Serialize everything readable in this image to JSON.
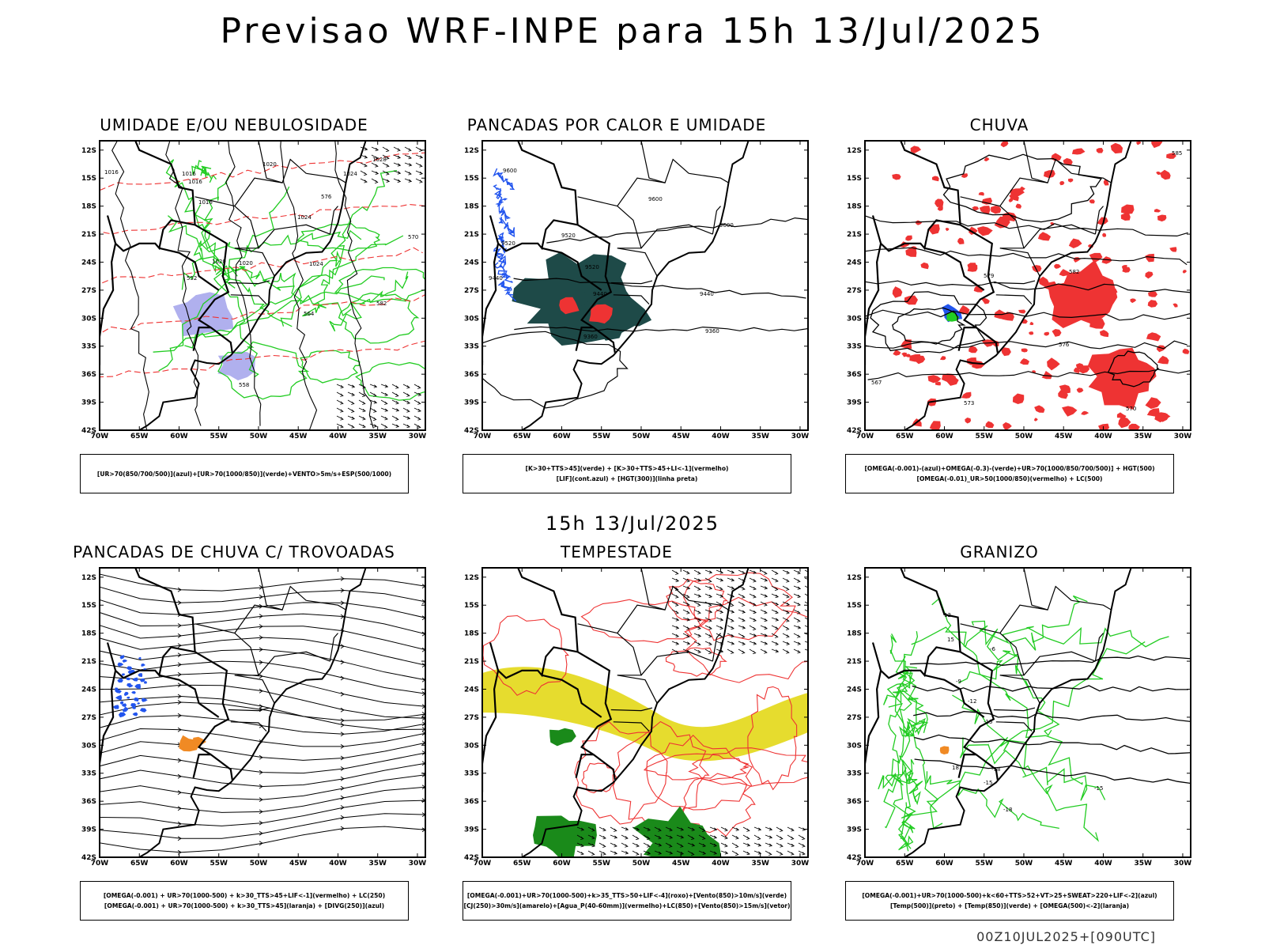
{
  "title": "Previsao WRF-INPE  para 15h 13/Jul/2025",
  "subtitle": "15h 13/Jul/2025",
  "footer": "00Z10JUL2025+[090UTC]",
  "axes": {
    "lat_labels": [
      "12S",
      "15S",
      "18S",
      "21S",
      "24S",
      "27S",
      "30S",
      "33S",
      "36S",
      "39S",
      "42S"
    ],
    "lon_labels": [
      "70W",
      "65W",
      "60W",
      "55W",
      "50W",
      "45W",
      "40W",
      "35W",
      "30W"
    ]
  },
  "colors": {
    "green": "#22cc22",
    "red": "#ee3333",
    "blue": "#2255ee",
    "lavender": "#b0b0ee",
    "darkteal": "#1e4a48",
    "yellow": "#e6dc2e",
    "orange": "#f08a24",
    "darkgreen": "#1a8a1a"
  },
  "panels": [
    {
      "id": "umidade",
      "title": "UMIDADE E/OU NEBULOSIDADE",
      "legend": [
        "[UR>70(850/700/500)](azul)+[UR>70(1000/850)](verde)+VENTO>5m/s+ESP(500/1000)"
      ],
      "contour_labels": [
        "1016",
        "1016",
        "1016",
        "1016",
        "1020",
        "1020",
        "1020",
        "1024",
        "1024",
        "1024",
        "1028",
        "570",
        "564",
        "558",
        "552",
        "576",
        "582"
      ]
    },
    {
      "id": "pancadas-calor",
      "title": "PANCADAS POR CALOR E UMIDADE",
      "legend": [
        "[K>30+TTS>45](verde) + [K>30+TTS>45+LI<-1](vermelho)",
        "[LIF](cont.azul) + [HGT(300)](linha preta)"
      ],
      "contour_labels": [
        "9600",
        "9600",
        "9600",
        "9520",
        "9520",
        "9520",
        "9440",
        "9440",
        "9440",
        "9360",
        "9360"
      ]
    },
    {
      "id": "chuva",
      "title": "CHUVA",
      "legend": [
        "[OMEGA(-0.001)-(azul)+OMEGA(-0.3)-(verde)+UR>70(1000/850/700/500)] + HGT(500)",
        "[OMEGA(-0.01)_UR>50(1000/850)(vermelho) + LC(500)"
      ],
      "contour_labels": [
        "585",
        "582",
        "579",
        "576",
        "573",
        "570",
        "567"
      ]
    },
    {
      "id": "pancadas-trovoadas",
      "title": "PANCADAS DE CHUVA C/ TROVOADAS",
      "legend": [
        "[OMEGA(-0.001) + UR>70(1000-500) + k>30_TTS>45+LIF<-1](vermelho) + LC(250)",
        "[OMEGA(-0.001) + UR>70(1000-500) + k>30_TTS>45](laranja) + [DIVG(250)](azul)"
      ],
      "contour_labels": []
    },
    {
      "id": "tempestade",
      "title": "TEMPESTADE",
      "legend": [
        "[OMEGA(-0.001)+UR>70(1000-500)+k>35_TTS>50+LIF<-4](roxo)+[Vento(850)>10m/s](verde)",
        "[CJ(250)>30m/s](amarelo)+[Agua_P(40-60mm)](vermelho)+LC(850)+[Vento(850)>15m/s](vetor)"
      ],
      "contour_labels": []
    },
    {
      "id": "granizo",
      "title": "GRANIZO",
      "legend": [
        "[OMEGA(-0.001)+UR>70(1000-500)+k<60+TTS>52+VT>25+SWEAT>220+LIF<-2](azul)",
        "[Temp(500)](preto) + [Temp(850)](verde) + [OMEGA(500)<-2](laranja)"
      ],
      "contour_labels": [
        "-6",
        "-9",
        "-12",
        "-15",
        "-15",
        "-18",
        "-18",
        "-15",
        "18",
        "15",
        "12"
      ]
    }
  ]
}
